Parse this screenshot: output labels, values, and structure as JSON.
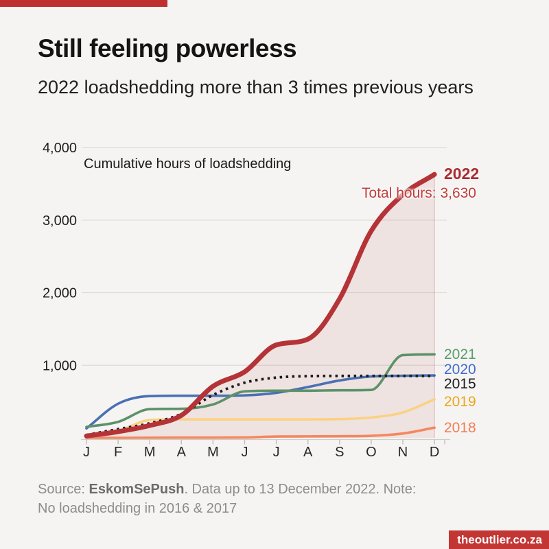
{
  "header": {
    "title": "Still feeling powerless",
    "subtitle": "2022 loadshedding more than 3 times previous years"
  },
  "chart_data": {
    "type": "line",
    "inner_title": "Cumulative hours of loadshedding",
    "categories": [
      "J",
      "F",
      "M",
      "A",
      "M",
      "J",
      "J",
      "A",
      "S",
      "O",
      "N",
      "D"
    ],
    "ylim": [
      0,
      4000
    ],
    "grid": "horizontal",
    "legend_position": "right-of-line-ends",
    "yticks": [
      {
        "value": 1000,
        "label": "1,000"
      },
      {
        "value": 2000,
        "label": "2,000"
      },
      {
        "value": 3000,
        "label": "3,000"
      },
      {
        "value": 4000,
        "label": "4,000"
      }
    ],
    "series": [
      {
        "name": "2022",
        "color": "#b53337",
        "label_color": "#a92c32",
        "style": "solid-thick",
        "area_fill": true,
        "values": [
          25,
          85,
          170,
          310,
          710,
          910,
          1280,
          1360,
          1915,
          2850,
          3350,
          3630
        ]
      },
      {
        "name": "2021",
        "color": "#5c9168",
        "label_color": "#579e6d",
        "style": "solid",
        "values": [
          150,
          220,
          395,
          400,
          460,
          640,
          650,
          650,
          655,
          660,
          1140,
          1150
        ]
      },
      {
        "name": "2020",
        "color": "#4a70b4",
        "label_color": "#3e6cc9",
        "style": "solid",
        "values": [
          130,
          470,
          575,
          580,
          580,
          585,
          620,
          700,
          790,
          845,
          855,
          860
        ]
      },
      {
        "name": "2015",
        "color": "#1c1c1c",
        "label_color": "#1c1c1c",
        "style": "dotted",
        "values": [
          40,
          120,
          200,
          330,
          590,
          760,
          830,
          850,
          853,
          853,
          853,
          853
        ]
      },
      {
        "name": "2019",
        "color": "#fbd183",
        "label_color": "#e9a71c",
        "style": "solid",
        "values": [
          5,
          90,
          245,
          255,
          255,
          255,
          255,
          255,
          258,
          280,
          350,
          530
        ]
      },
      {
        "name": "2018",
        "color": "#f5875f",
        "label_color": "#f17c54",
        "style": "solid",
        "values": [
          0,
          0,
          2,
          3,
          3,
          5,
          18,
          20,
          22,
          28,
          60,
          140
        ]
      }
    ],
    "annotations": {
      "year_label": "2022",
      "total_hours_label": "Total hours: 3,630"
    }
  },
  "footer": {
    "source_prefix": "Source: ",
    "source_name": "EskomSePush",
    "source_suffix": ". Data up to 13 December 2022. Note:",
    "line2": "No loadshedding in 2016 & 2017"
  },
  "branding": {
    "site": "theoutlier.co.za",
    "accent_red": "#bf2f32"
  }
}
